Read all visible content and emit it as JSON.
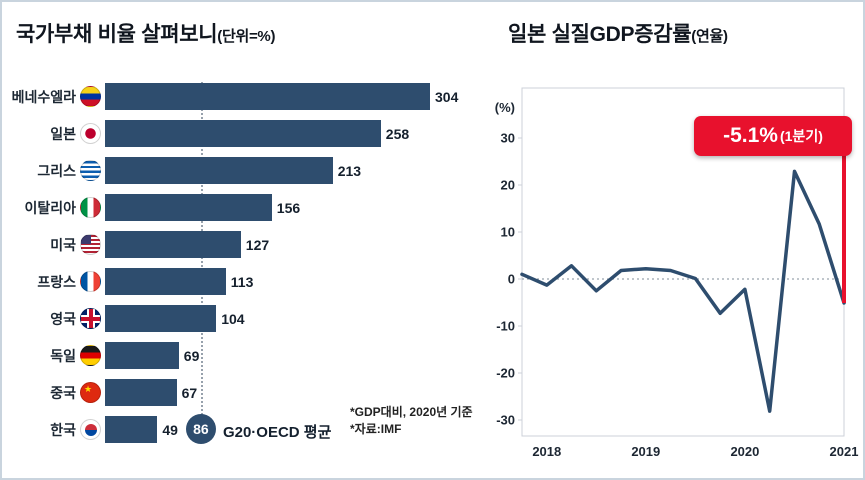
{
  "colors": {
    "bar_navy": "#2e4d6e",
    "accent_red": "#e8112d",
    "text_dark": "#14202e"
  },
  "chart_data": [
    {
      "type": "bar",
      "orientation": "horizontal",
      "title": "국가부채 비율 살펴보니",
      "unit_label": "(단위=%)",
      "categories": [
        "베네수엘라",
        "일본",
        "그리스",
        "이탈리아",
        "미국",
        "프랑스",
        "영국",
        "독일",
        "중국",
        "한국"
      ],
      "values": [
        304,
        258,
        213,
        156,
        127,
        113,
        104,
        69,
        67,
        49
      ],
      "flags": [
        "ve",
        "jp",
        "gr",
        "it",
        "us",
        "fr",
        "gb",
        "de",
        "cn",
        "kr"
      ],
      "xmax": 304,
      "bar_color": "#2e4d6e",
      "average": {
        "value": 86,
        "label": "G20·OECD 평균"
      },
      "footnotes": [
        "*GDP대비, 2020년 기준",
        "*자료:IMF"
      ]
    },
    {
      "type": "line",
      "title": "일본 실질GDP증감률",
      "unit_label": "(연율)",
      "axis_unit": "(%)",
      "x": [
        "2017Q4",
        "2018Q1",
        "2018Q2",
        "2018Q3",
        "2018Q4",
        "2019Q1",
        "2019Q2",
        "2019Q3",
        "2019Q4",
        "2020Q1",
        "2020Q2",
        "2020Q3",
        "2020Q4",
        "2021Q1"
      ],
      "y": [
        1.0,
        -1.3,
        2.8,
        -2.5,
        1.8,
        2.2,
        1.8,
        0.1,
        -7.3,
        -2.2,
        -28.1,
        22.9,
        11.7,
        -5.1
      ],
      "x_tick_labels": [
        "2018",
        "2019",
        "2020",
        "2021"
      ],
      "y_ticks": [
        30,
        20,
        10,
        0,
        -10,
        -20,
        -30
      ],
      "ylim": [
        -36,
        42
      ],
      "grid": "zero-line-only",
      "line_color": "#2e4d6e",
      "annotation": {
        "value": "-5.1%",
        "label": "(1분기)"
      }
    }
  ]
}
